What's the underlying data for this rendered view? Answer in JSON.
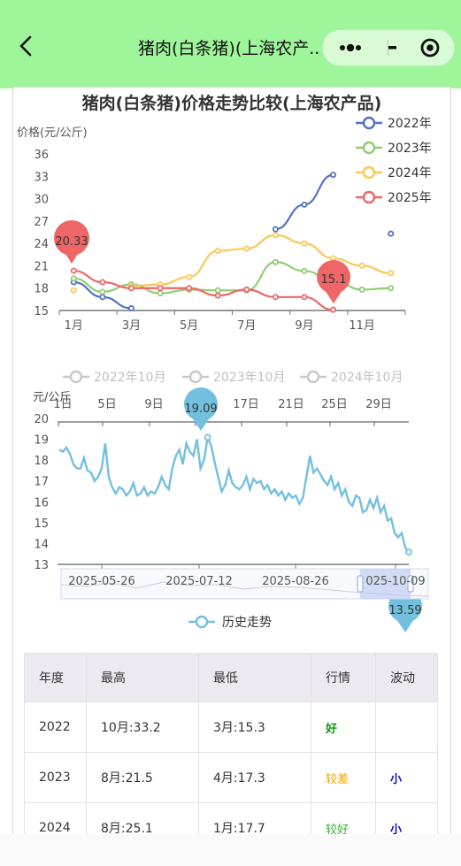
{
  "nav": {
    "title": "猪肉(白条猪)(上海农产..."
  },
  "chart1": {
    "title": "猪肉(白条猪)价格走势比较(上海农产品)",
    "ylabel": "价格(元/公斤)",
    "yticks": [
      "36",
      "33",
      "30",
      "27",
      "24",
      "21",
      "18",
      "15"
    ],
    "xticks": [
      "1月",
      "3月",
      "5月",
      "7月",
      "9月",
      "11月"
    ],
    "legend": [
      "2022年",
      "2023年",
      "2024年",
      "2025年"
    ],
    "pin_max": "20.33",
    "pin_min": "15.1"
  },
  "chart2": {
    "legend_top": [
      "2022年10月",
      "2023年10月",
      "2024年10月"
    ],
    "ylabel": "元/公斤",
    "top_ticks": [
      "1日",
      "5日",
      "9日",
      "13日",
      "17日",
      "21日",
      "25日",
      "29日"
    ],
    "yticks": [
      "20",
      "19",
      "18",
      "17",
      "16",
      "15",
      "14",
      "13"
    ],
    "date_labels": [
      "2025-05-26",
      "2025-07-12",
      "2025-08-26",
      "025-10-09"
    ],
    "pin_max": "19.09",
    "pin_min": "13.59",
    "legend_bottom": "历史走势"
  },
  "chart_data": [
    {
      "type": "line",
      "title": "猪肉(白条猪)价格走势比较(上海农产品)",
      "ylabel": "价格(元/公斤)",
      "ylim": [
        15,
        36
      ],
      "categories": [
        "1月",
        "2月",
        "3月",
        "4月",
        "5月",
        "6月",
        "7月",
        "8月",
        "9月",
        "10月",
        "11月",
        "12月"
      ],
      "series": [
        {
          "name": "2022年",
          "color": "#5470c6",
          "values": [
            18.8,
            16.8,
            15.3,
            null,
            null,
            null,
            null,
            25.9,
            29.2,
            33.2,
            null,
            25.3
          ]
        },
        {
          "name": "2023年",
          "color": "#91cc75",
          "values": [
            19.3,
            17.5,
            18.5,
            17.3,
            17.8,
            17.7,
            17.7,
            21.5,
            20.3,
            19.0,
            17.8,
            18.0
          ]
        },
        {
          "name": "2024年",
          "color": "#fac858",
          "values": [
            17.7,
            null,
            18.3,
            18.5,
            19.5,
            23.0,
            23.3,
            25.1,
            24.0,
            22.0,
            21.0,
            20.0
          ]
        },
        {
          "name": "2025年",
          "color": "#ee6666",
          "values": [
            20.33,
            18.8,
            18.0,
            18.0,
            18.0,
            17.0,
            17.8,
            16.8,
            16.8,
            15.1,
            null,
            null
          ]
        }
      ],
      "legend": "top-right"
    },
    {
      "type": "line",
      "title": "",
      "ylabel": "元/公斤",
      "ylim": [
        13,
        20
      ],
      "series": [
        {
          "name": "历史走势",
          "color": "#73c0de",
          "max": 19.09,
          "min": 13.59,
          "values": [
            18.5,
            18.4,
            18.6,
            18.3,
            17.8,
            17.6,
            17.6,
            18.1,
            17.5,
            17.4,
            17.0,
            17.2,
            17.6,
            18.8,
            17.2,
            16.7,
            16.4,
            16.7,
            16.6,
            16.3,
            16.5,
            16.9,
            16.3,
            16.4,
            16.7,
            16.3,
            16.5,
            16.4,
            16.7,
            17.2,
            16.8,
            16.6,
            17.6,
            18.2,
            18.5,
            17.8,
            18.8,
            18.4,
            18.2,
            19.0,
            17.6,
            18.0,
            19.09,
            18.7,
            17.9,
            17.2,
            16.5,
            16.8,
            17.5,
            16.9,
            16.7,
            16.6,
            16.8,
            17.2,
            16.6,
            17.1,
            16.9,
            17.0,
            16.6,
            16.8,
            16.4,
            16.6,
            16.3,
            16.5,
            16.1,
            16.4,
            16.2,
            16.3,
            15.9,
            16.2,
            17.2,
            18.2,
            17.4,
            17.6,
            17.3,
            17.0,
            16.8,
            17.2,
            16.6,
            16.9,
            16.3,
            16.6,
            16.0,
            15.8,
            16.3,
            16.2,
            15.5,
            15.6,
            16.1,
            15.7,
            16.2,
            15.5,
            15.8,
            15.1,
            15.2,
            14.5,
            14.3,
            14.5,
            13.8,
            13.59
          ]
        }
      ],
      "x_date_labels": [
        "2025-05-26",
        "2025-07-12",
        "2025-08-26",
        "025-10-09"
      ],
      "legend": "bottom"
    }
  ],
  "table": {
    "headers": [
      "年度",
      "最高",
      "最低",
      "行情",
      "波动"
    ],
    "rows": [
      [
        "2022",
        "10月:33.2",
        "3月:15.3",
        "好",
        ""
      ],
      [
        "2023",
        "8月:21.5",
        "4月:17.3",
        "较差",
        "小"
      ],
      [
        "2024",
        "8月:25.1",
        "1月:17.7",
        "较好",
        "小"
      ]
    ]
  }
}
